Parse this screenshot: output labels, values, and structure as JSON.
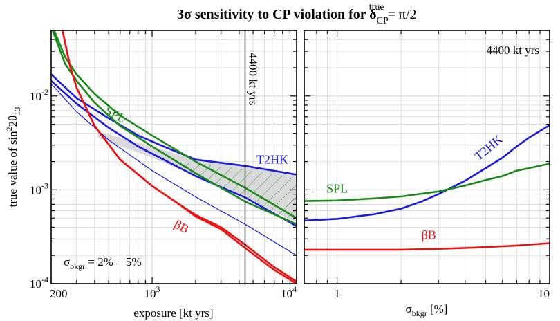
{
  "title": {
    "prefix": "3σ sensitivity to CP violation for δ",
    "sub": "CP",
    "sup": "true",
    "suffix": " = π/2"
  },
  "colors": {
    "spl": "#1a8a1a",
    "t2hk": "#1a1ae0",
    "bb": "#ee1111",
    "band": "#d9d9d9",
    "grid": "#d0d0d0",
    "axis": "#000000"
  },
  "chart_data": [
    {
      "type": "line",
      "xscale": "log",
      "yscale": "log",
      "xlim": [
        200,
        10000
      ],
      "ylim": [
        0.0001,
        0.05
      ],
      "grid": true,
      "xlabel": "exposure [kt yrs]",
      "ylabel": {
        "main": "true value of  sin",
        "sup": "2",
        "tail": "2θ",
        "sub": "13"
      },
      "x_ticks": [
        {
          "value": 200,
          "base": "200",
          "exp": ""
        },
        {
          "value": 1000,
          "base": "10",
          "exp": "3"
        },
        {
          "value": 10000,
          "base": "10",
          "exp": "4"
        }
      ],
      "y_ticks": [
        {
          "value": 0.0001,
          "base": "10",
          "exp": "-4"
        },
        {
          "value": 0.001,
          "base": "10",
          "exp": "-3"
        },
        {
          "value": 0.01,
          "base": "10",
          "exp": "-2"
        }
      ],
      "vline": {
        "x": 4400,
        "label": "4400 kt yrs"
      },
      "annotation": {
        "prefix": "σ",
        "sub": "bkgr",
        "suffix": " = 2% − 5%"
      },
      "band": {
        "x": [
          420,
          1000,
          2000,
          4400,
          10000
        ],
        "upper": [
          0.0042,
          0.0029,
          0.0021,
          0.0018,
          0.00145
        ],
        "lower": [
          0.0036,
          0.0022,
          0.0014,
          0.00083,
          0.00045
        ]
      },
      "series": [
        {
          "key": "t2hk",
          "name": "T2HK",
          "role": "upper",
          "width": 2.6,
          "x": [
            200,
            300,
            500,
            800,
            1200,
            2000,
            4400,
            10000
          ],
          "y": [
            0.017,
            0.0095,
            0.0058,
            0.0038,
            0.0029,
            0.0021,
            0.0018,
            0.00145
          ]
        },
        {
          "key": "t2hk",
          "role": "lower",
          "width": 2.6,
          "x": [
            200,
            300,
            500,
            800,
            1200,
            2000,
            4400,
            10000
          ],
          "y": [
            0.0145,
            0.0083,
            0.0046,
            0.0029,
            0.0021,
            0.0014,
            0.00083,
            0.00041
          ]
        },
        {
          "key": "t2hk",
          "role": "thin",
          "width": 1.2,
          "x": [
            200,
            300,
            500,
            1000,
            2000,
            4400,
            10000
          ],
          "y": [
            0.0135,
            0.0068,
            0.0034,
            0.0016,
            0.00084,
            0.00043,
            0.0002
          ]
        },
        {
          "key": "spl",
          "name": "SPL",
          "role": "upper",
          "width": 2.6,
          "x": [
            210,
            250,
            300,
            400,
            600,
            1000,
            2000,
            4400,
            10000
          ],
          "y": [
            0.05,
            0.026,
            0.017,
            0.0105,
            0.0062,
            0.0038,
            0.002,
            0.00105,
            0.0005
          ]
        },
        {
          "key": "spl",
          "role": "lower",
          "width": 2.6,
          "x": [
            205,
            250,
            300,
            400,
            600,
            1000,
            2000,
            4400,
            10000
          ],
          "y": [
            0.05,
            0.022,
            0.0145,
            0.0085,
            0.0048,
            0.0029,
            0.0015,
            0.00075,
            0.00043
          ]
        },
        {
          "key": "bb",
          "name": "βB",
          "role": "upper",
          "width": 2.6,
          "x": [
            240,
            270,
            300,
            400,
            600,
            1000,
            1500,
            2000,
            3000,
            4400,
            7000,
            10000
          ],
          "y": [
            0.05,
            0.021,
            0.0123,
            0.0048,
            0.0021,
            0.0011,
            0.00072,
            0.00054,
            0.0004,
            0.00026,
            0.00015,
            0.000105
          ]
        },
        {
          "key": "bb",
          "role": "lower",
          "width": 2.6,
          "x": [
            240,
            270,
            300,
            400,
            600,
            1000,
            1500,
            2000,
            3000,
            4400,
            7000,
            10000
          ],
          "y": [
            0.05,
            0.021,
            0.0123,
            0.0048,
            0.0021,
            0.0011,
            0.00072,
            0.00052,
            0.00038,
            0.00024,
            0.00014,
            0.0001
          ]
        }
      ],
      "curve_labels": [
        {
          "key": "spl",
          "text": "SPL",
          "x": 540,
          "y": 0.0058,
          "rotate": 28
        },
        {
          "key": "t2hk",
          "text": "T2HK",
          "x": 6800,
          "y": 0.0019,
          "rotate": 0
        },
        {
          "key": "bb",
          "text": "βB",
          "x": 1550,
          "y": 0.00037,
          "rotate": 28
        }
      ]
    },
    {
      "type": "line",
      "xscale": "log",
      "yscale": "log",
      "xlim": [
        0.7,
        10
      ],
      "ylim": [
        0.0001,
        0.05
      ],
      "grid": true,
      "xlabel": {
        "prefix": "σ",
        "sub": "bkgr",
        "suffix": " [%]"
      },
      "x_ticks": [
        {
          "value": 1,
          "base": "1",
          "exp": ""
        },
        {
          "value": 10,
          "base": "10",
          "exp": ""
        }
      ],
      "title": "4400 kt yrs",
      "series": [
        {
          "key": "t2hk",
          "name": "T2HK",
          "width": 2.6,
          "x": [
            0.7,
            1,
            1.5,
            2,
            2.5,
            3,
            4,
            5,
            6,
            7,
            8,
            10
          ],
          "y": [
            0.00047,
            0.00049,
            0.00055,
            0.00063,
            0.00075,
            0.0009,
            0.00125,
            0.0017,
            0.0022,
            0.0029,
            0.0036,
            0.0049
          ]
        },
        {
          "key": "spl",
          "name": "SPL",
          "width": 2.6,
          "x": [
            0.7,
            1,
            1.5,
            2,
            3,
            4,
            5,
            6,
            7,
            8,
            10
          ],
          "y": [
            0.00076,
            0.00077,
            0.00081,
            0.00085,
            0.00096,
            0.00111,
            0.00127,
            0.0014,
            0.0016,
            0.0017,
            0.0019
          ]
        },
        {
          "key": "bb",
          "name": "βB",
          "width": 2.6,
          "x": [
            0.7,
            1,
            1.5,
            2,
            3,
            4,
            5,
            6,
            7,
            8,
            10
          ],
          "y": [
            0.00023,
            0.00023,
            0.00023,
            0.00023,
            0.000235,
            0.00024,
            0.000245,
            0.00025,
            0.000255,
            0.00026,
            0.00027
          ]
        }
      ],
      "curve_labels": [
        {
          "key": "spl",
          "text": "SPL",
          "x": 1,
          "y": 0.00093,
          "rotate": 0
        },
        {
          "key": "t2hk",
          "text": "T2HK",
          "x": 5.3,
          "y": 0.0026,
          "rotate": -40
        },
        {
          "key": "bb",
          "text": "βB",
          "x": 2.7,
          "y": 0.0003,
          "rotate": 0
        }
      ]
    }
  ]
}
